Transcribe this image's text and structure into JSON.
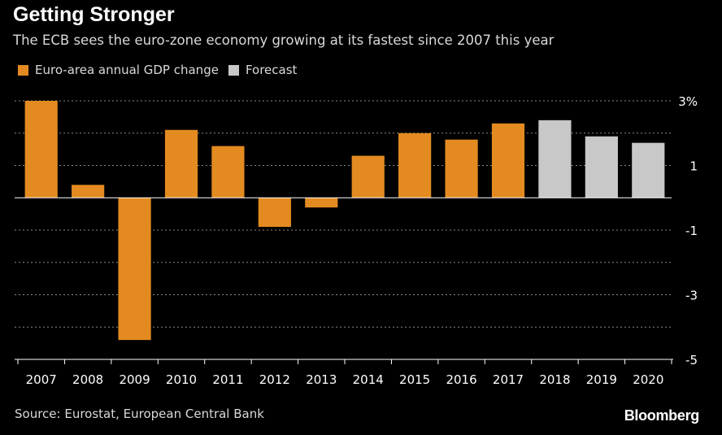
{
  "header": {
    "title": "Getting Stronger",
    "subtitle": "The ECB sees the euro-zone economy growing at its fastest since 2007 this year"
  },
  "legend": {
    "actual_label": "Euro-area annual GDP change",
    "forecast_label": "Forecast"
  },
  "footer": {
    "source": "Source: Eurostat, European Central Bank",
    "brand": "Bloomberg"
  },
  "colors": {
    "actual": "#e38b21",
    "forecast": "#c8c8c8",
    "background": "#000000",
    "grid": "#8a8a8a"
  },
  "chart_data": {
    "type": "bar",
    "categories": [
      "2007",
      "2008",
      "2009",
      "2010",
      "2011",
      "2012",
      "2013",
      "2014",
      "2015",
      "2016",
      "2017",
      "2018",
      "2019",
      "2020"
    ],
    "series": [
      {
        "name": "Euro-area annual GDP change",
        "values": [
          3.0,
          0.4,
          -4.4,
          2.1,
          1.6,
          -0.9,
          -0.3,
          1.3,
          2.0,
          1.8,
          2.3,
          null,
          null,
          null
        ]
      },
      {
        "name": "Forecast",
        "values": [
          null,
          null,
          null,
          null,
          null,
          null,
          null,
          null,
          null,
          null,
          null,
          2.4,
          1.9,
          1.7
        ]
      }
    ],
    "ylim": [
      -5,
      3.5
    ],
    "yticks": [
      3,
      1,
      -1,
      -3,
      -5
    ],
    "ytick_labels": [
      "3%",
      "1",
      "-1",
      "-3",
      "-5"
    ],
    "y_axis_position": "right",
    "grid": true,
    "legend_position": "top-left",
    "xlabel": "",
    "ylabel": ""
  }
}
